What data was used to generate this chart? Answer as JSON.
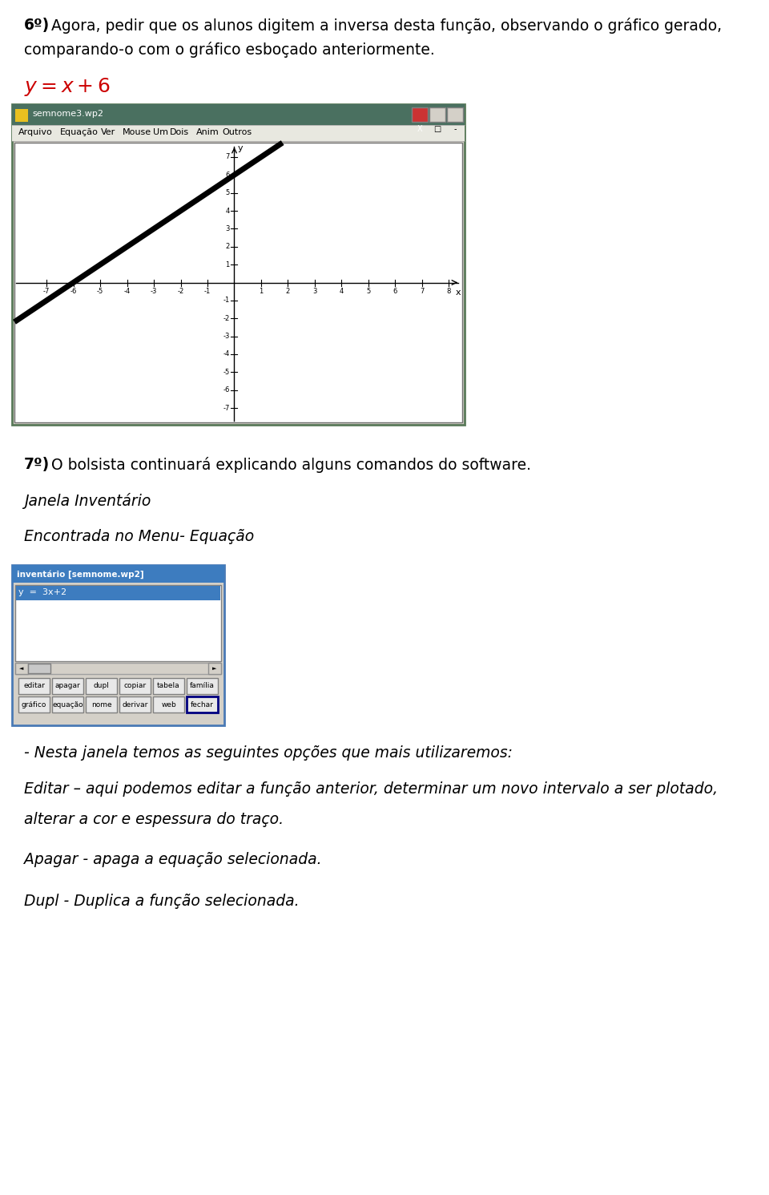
{
  "bg_color": "#ffffff",
  "title_text1_bold": "6º)",
  "title_text1_rest": " Agora, pedir que os alunos digitem a inversa desta função, observando o gráfico gerado,",
  "title_line2": "comparando-o com o gráfico esboçado anteriormente.",
  "formula_color": "#cc0000",
  "section7_bold": "7º)",
  "section7_rest": " O bolsista continuará explicando alguns comandos do software.",
  "janela_title": "Janela Inventário",
  "encontrada_text": "Encontrada no Menu- Equação",
  "nesta_text": "- Nesta janela temos as seguintes opções que mais utilizaremos:",
  "editar_text": "Editar – aqui podemos editar a função anterior, determinar um novo intervalo a ser plotado,",
  "editar_line2": "alterar a cor e espessura do traço.",
  "apagar_text": "Apagar - apaga a equação selecionada.",
  "dupl_text": "Dupl - Duplica a função selecionada.",
  "win_titlebar_color": "#4a7060",
  "win_menubar_color": "#e8e8e0",
  "win_border_color": "#5a7a5a",
  "win_bg": "#d4d0c8",
  "inv_title_text": "inventário [semnome.wp2]",
  "inv_title_bg": "#3d7cbf",
  "inv_item_text": "y  =  3x+2",
  "menu_items": [
    "Arquivo",
    "Equação",
    "Ver",
    "Mouse",
    "Um",
    "Dois",
    "Anim",
    "Outros"
  ],
  "buttons_row1": [
    "editar",
    "apagar",
    "dupl",
    "copiar",
    "tabela",
    "família"
  ],
  "buttons_row2": [
    "gráfico",
    "equação",
    "nome",
    "derivar",
    "web",
    "fechar"
  ]
}
